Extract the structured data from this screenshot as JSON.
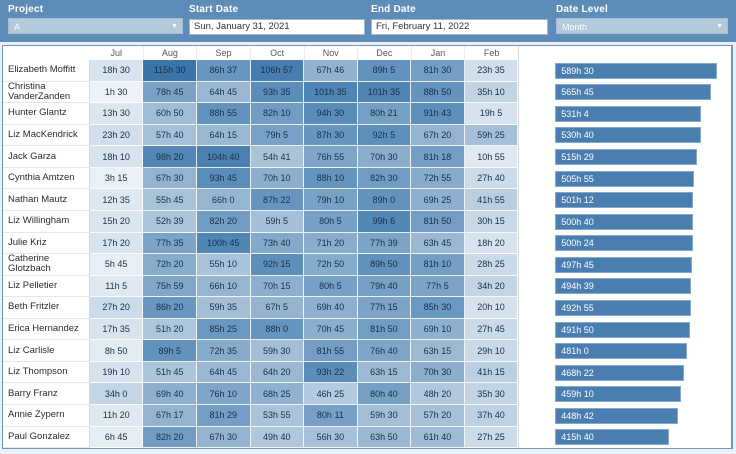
{
  "filters": {
    "project": {
      "label": "Project",
      "value": "A"
    },
    "start_date": {
      "label": "Start Date",
      "value": "Sun, January 31, 2021"
    },
    "end_date": {
      "label": "End Date",
      "value": "Fri, February 11, 2022"
    },
    "date_level": {
      "label": "Date Level",
      "value": "Month"
    }
  },
  "colors": {
    "topbar_bg": "#5d8cb8",
    "control_bg": "#b3c9dc",
    "panel_border": "#6f97bd",
    "bar_fill": "#4a7db0",
    "heat_text": "#16304a",
    "heat_scale": [
      [
        0,
        "#eef3f8"
      ],
      [
        60,
        "#a3bed6"
      ],
      [
        90,
        "#6191bc"
      ],
      [
        116,
        "#3a73a8"
      ]
    ]
  },
  "chart_data": {
    "type": "heatmap",
    "columns": [
      "Jul",
      "Aug",
      "Sep",
      "Oct",
      "Nov",
      "Dec",
      "Jan",
      "Feb"
    ],
    "bar_axis_max": 640,
    "legend_position": "none",
    "rows": [
      {
        "name": "Elizabeth Moffitt",
        "cells": [
          "18h 30",
          "115h 30",
          "86h 37",
          "106h 57",
          "67h 46",
          "89h 5",
          "81h 30",
          "23h 35"
        ],
        "hours": [
          18.5,
          115.5,
          86.62,
          106.95,
          67.77,
          89.08,
          81.5,
          23.58
        ],
        "total_label": "589h 30",
        "total_hours": 589.5
      },
      {
        "name": "Christina VanderZanden",
        "cells": [
          "1h 30",
          "78h 45",
          "64h 45",
          "93h 35",
          "101h 35",
          "101h 35",
          "88h 50",
          "35h 10"
        ],
        "hours": [
          1.5,
          78.75,
          64.75,
          93.58,
          101.58,
          101.58,
          88.83,
          35.17
        ],
        "total_label": "565h 45",
        "total_hours": 565.75
      },
      {
        "name": "Hunter Glantz",
        "cells": [
          "13h 30",
          "60h 50",
          "88h 55",
          "82h 10",
          "94h 30",
          "80h 21",
          "91h 43",
          "19h 5"
        ],
        "hours": [
          13.5,
          60.83,
          88.92,
          82.17,
          94.5,
          80.35,
          91.72,
          19.08
        ],
        "total_label": "531h 4",
        "total_hours": 531.07
      },
      {
        "name": "Liz MacKendrick",
        "cells": [
          "23h 20",
          "57h 40",
          "64h 15",
          "79h 5",
          "87h 30",
          "92h 5",
          "67h 20",
          "59h 25"
        ],
        "hours": [
          23.33,
          57.67,
          64.25,
          79.08,
          87.5,
          92.08,
          67.33,
          59.42
        ],
        "total_label": "530h 40",
        "total_hours": 530.67
      },
      {
        "name": "Jack Garza",
        "cells": [
          "18h 10",
          "98h 20",
          "104h 40",
          "54h 41",
          "76h 55",
          "70h 30",
          "81h 18",
          "10h 55"
        ],
        "hours": [
          18.17,
          98.33,
          104.67,
          54.68,
          76.92,
          70.5,
          81.3,
          10.92
        ],
        "total_label": "515h 29",
        "total_hours": 515.48
      },
      {
        "name": "Cynthia Amtzen",
        "cells": [
          "3h 15",
          "67h 30",
          "93h 45",
          "70h 10",
          "88h 10",
          "82h 30",
          "72h 55",
          "27h 40"
        ],
        "hours": [
          3.25,
          67.5,
          93.75,
          70.17,
          88.17,
          82.5,
          72.92,
          27.67
        ],
        "total_label": "505h 55",
        "total_hours": 505.92
      },
      {
        "name": "Nathan Mautz",
        "cells": [
          "12h 35",
          "55h 45",
          "66h 0",
          "87h 22",
          "79h 10",
          "89h 0",
          "69h 25",
          "41h 55"
        ],
        "hours": [
          12.58,
          55.75,
          66.0,
          87.37,
          79.17,
          89.0,
          69.42,
          41.92
        ],
        "total_label": "501h 12",
        "total_hours": 501.2
      },
      {
        "name": "Liz Willingham",
        "cells": [
          "15h 20",
          "52h 39",
          "82h 20",
          "59h 5",
          "80h 5",
          "99h 6",
          "81h 50",
          "30h 15"
        ],
        "hours": [
          15.33,
          52.65,
          82.33,
          59.08,
          80.08,
          99.1,
          81.83,
          30.25
        ],
        "total_label": "500h 40",
        "total_hours": 500.67
      },
      {
        "name": "Julie Kriz",
        "cells": [
          "17h 20",
          "77h 35",
          "100h 45",
          "73h 40",
          "71h 20",
          "77h 39",
          "63h 45",
          "18h 20"
        ],
        "hours": [
          17.33,
          77.58,
          100.75,
          73.67,
          71.33,
          77.65,
          63.75,
          18.33
        ],
        "total_label": "500h 24",
        "total_hours": 500.4
      },
      {
        "name": "Catherine Glotzbach",
        "cells": [
          "5h 45",
          "72h 20",
          "55h 10",
          "92h 15",
          "72h 50",
          "89h 50",
          "81h 10",
          "28h 25"
        ],
        "hours": [
          5.75,
          72.33,
          55.17,
          92.25,
          72.83,
          89.83,
          81.17,
          28.42
        ],
        "total_label": "497h 45",
        "total_hours": 497.75
      },
      {
        "name": "Liz Pelletier",
        "cells": [
          "11h 5",
          "75h 59",
          "66h 10",
          "70h 15",
          "80h 5",
          "79h 40",
          "77h 5",
          "34h 20"
        ],
        "hours": [
          11.08,
          75.98,
          66.17,
          70.25,
          80.08,
          79.67,
          77.08,
          34.33
        ],
        "total_label": "494h 39",
        "total_hours": 494.65
      },
      {
        "name": "Beth Fritzler",
        "cells": [
          "27h 20",
          "86h 20",
          "59h 35",
          "67h 5",
          "69h 40",
          "77h 15",
          "85h 30",
          "20h 10"
        ],
        "hours": [
          27.33,
          86.33,
          59.58,
          67.08,
          69.67,
          77.25,
          85.5,
          20.17
        ],
        "total_label": "492h 55",
        "total_hours": 492.92
      },
      {
        "name": "Erica Hernandez",
        "cells": [
          "17h 35",
          "51h 20",
          "85h 25",
          "88h 0",
          "70h 45",
          "81h 50",
          "69h 10",
          "27h 45"
        ],
        "hours": [
          17.58,
          51.33,
          85.42,
          88.0,
          70.75,
          81.83,
          69.17,
          27.75
        ],
        "total_label": "491h 50",
        "total_hours": 491.83
      },
      {
        "name": "Liz Carlisle",
        "cells": [
          "8h 50",
          "89h 5",
          "72h 35",
          "59h 30",
          "81h 55",
          "76h 40",
          "63h 15",
          "29h 10"
        ],
        "hours": [
          8.83,
          89.08,
          72.58,
          59.5,
          81.92,
          76.67,
          63.25,
          29.17
        ],
        "total_label": "481h 0",
        "total_hours": 481.0
      },
      {
        "name": "Liz Thompson",
        "cells": [
          "19h 10",
          "51h 45",
          "64h 45",
          "64h 20",
          "93h 22",
          "63h 15",
          "70h 30",
          "41h 15"
        ],
        "hours": [
          19.17,
          51.75,
          64.75,
          64.33,
          93.37,
          63.25,
          70.5,
          41.25
        ],
        "total_label": "468h 22",
        "total_hours": 468.37
      },
      {
        "name": "Barry Franz",
        "cells": [
          "34h 0",
          "69h 40",
          "76h 10",
          "68h 25",
          "46h 25",
          "80h 40",
          "48h 20",
          "35h 30"
        ],
        "hours": [
          34.0,
          69.67,
          76.17,
          68.42,
          46.42,
          80.67,
          48.33,
          35.5
        ],
        "total_label": "459h 10",
        "total_hours": 459.17
      },
      {
        "name": "Annie Zypern",
        "cells": [
          "11h 20",
          "67h 17",
          "81h 29",
          "53h 55",
          "80h 11",
          "59h 30",
          "57h 20",
          "37h 40"
        ],
        "hours": [
          11.33,
          67.28,
          81.48,
          53.92,
          80.18,
          59.5,
          57.33,
          37.67
        ],
        "total_label": "448h 42",
        "total_hours": 448.7
      },
      {
        "name": "Paul Gonzalez",
        "cells": [
          "6h 45",
          "82h 20",
          "67h 30",
          "49h 40",
          "56h 30",
          "63h 50",
          "61h 40",
          "27h 25"
        ],
        "hours": [
          6.75,
          82.33,
          67.5,
          49.67,
          56.5,
          63.83,
          61.67,
          27.42
        ],
        "total_label": "415h 40",
        "total_hours": 415.67
      }
    ]
  }
}
